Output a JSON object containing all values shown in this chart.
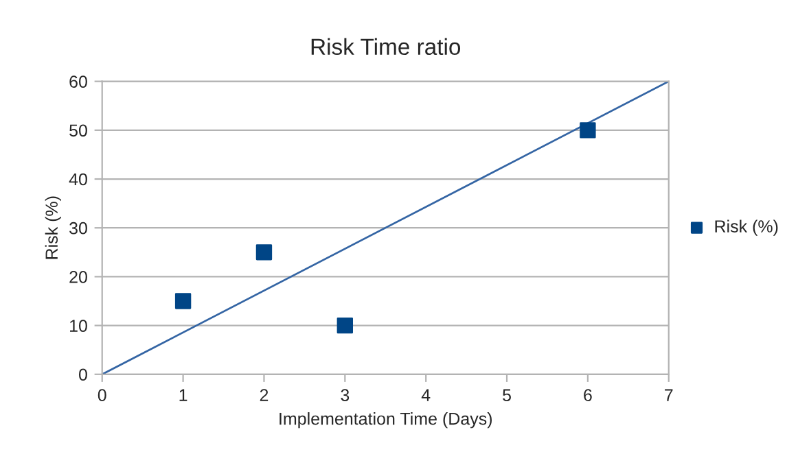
{
  "chart_data": {
    "type": "scatter",
    "title": "Risk Time ratio",
    "xlabel": "Implementation Time (Days)",
    "ylabel": "Risk (%)",
    "xlim": [
      0,
      7
    ],
    "xticks": [
      0,
      1,
      2,
      3,
      4,
      5,
      6,
      7
    ],
    "ylim": [
      0,
      60
    ],
    "yticks": [
      0,
      10,
      20,
      30,
      40,
      50,
      60
    ],
    "grid": "y",
    "legend": "right",
    "series": [
      {
        "name": "Risk (%)",
        "color": "#004586",
        "marker": "square",
        "x": [
          1,
          2,
          3,
          6
        ],
        "values": [
          15,
          25,
          10,
          50
        ]
      },
      {
        "type": "line",
        "color": "#3465a4",
        "marker": "none",
        "x": [
          0,
          7
        ],
        "values": [
          0,
          60
        ]
      }
    ]
  }
}
